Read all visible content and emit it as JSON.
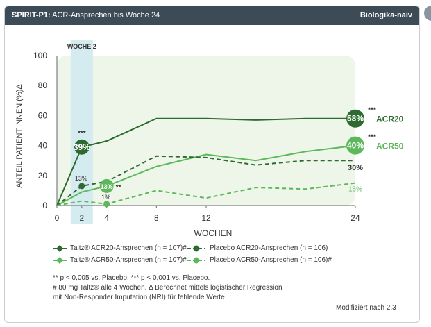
{
  "header": {
    "title_bold": "SPIRIT-P1:",
    "title_rest": "ACR-Ansprechen bis Woche 24",
    "subgroup": "Biologika-naiv"
  },
  "colors": {
    "header_bg": "#3d4b57",
    "taltz_acr20": "#2d6a2f",
    "taltz_acr50": "#5cb85a",
    "placebo_acr20": "#2d6a2f",
    "placebo_acr50": "#5cb85a",
    "week2_band": "#d4ebef",
    "plot_bg": "#eef6ea"
  },
  "chart_data": {
    "type": "line",
    "ylabel": "ANTEIL PATIENT:INNEN (%)Δ",
    "xlabel": "WOCHEN",
    "ylim": [
      0,
      100
    ],
    "xlim": [
      0,
      24
    ],
    "x_ticks": [
      0,
      2,
      4,
      8,
      12,
      24
    ],
    "y_ticks": [
      0,
      20,
      40,
      60,
      80,
      100
    ],
    "x": [
      0,
      2,
      4,
      8,
      12,
      16,
      20,
      24
    ],
    "highlight": {
      "label": "WOCHE 2",
      "x": 2
    },
    "series": [
      {
        "name": "Taltz® ACR20-Ansprechen (n = 107)#",
        "style": "solid",
        "line": "#2d6a2f",
        "values": [
          0,
          39,
          43,
          58,
          58,
          57,
          58,
          58
        ]
      },
      {
        "name": "Taltz® ACR50-Ansprechen (n = 107)#",
        "style": "solid",
        "line": "#5cb85a",
        "values": [
          0,
          9,
          13,
          26,
          34,
          30,
          36,
          40
        ]
      },
      {
        "name": "Placebo ACR20-Ansprechen (n = 106)",
        "style": "dashed",
        "line": "#2d6a2f",
        "values": [
          0,
          13,
          16,
          33,
          32,
          27,
          30,
          30
        ]
      },
      {
        "name": "Placebo ACR50-Ansprechen (n = 106)#",
        "style": "dashed",
        "line": "#5cb85a",
        "values": [
          0,
          3,
          1,
          10,
          5,
          12,
          11,
          15
        ]
      }
    ],
    "labels": {
      "taltz_acr20_w2": "39%",
      "taltz_acr20_w2_sig": "***",
      "placebo_acr20_w2": "13%",
      "taltz_acr50_w4": "13%",
      "taltz_acr50_w4_sig": "**",
      "placebo_acr50_w4": "1%",
      "taltz_acr20_w24": "58%",
      "taltz_acr20_w24_sig": "***",
      "acr20_name": "ACR20",
      "taltz_acr50_w24": "40%",
      "taltz_acr50_w24_sig": "***",
      "acr50_name": "ACR50",
      "placebo_acr20_w24": "30%",
      "placebo_acr50_w24": "15%"
    }
  },
  "notes": {
    "line1": "** p < 0,005 vs. Placebo. *** p < 0,001 vs. Placebo.",
    "line2": "# 80 mg Taltz® alle 4 Wochen. Δ Berechnet mittels logistischer Regression",
    "line3": "mit Non-Responder Imputation (NRI) für fehlende Werte."
  },
  "credit": "Modifiziert nach 2,3"
}
